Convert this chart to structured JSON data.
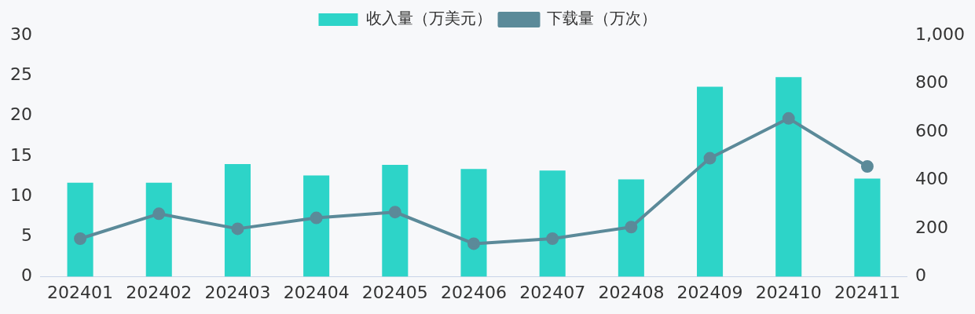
{
  "chart_data": {
    "type": "bar",
    "categories": [
      "202401",
      "202402",
      "202403",
      "202404",
      "202405",
      "202406",
      "202407",
      "202408",
      "202409",
      "202410",
      "202411"
    ],
    "series": [
      {
        "name": "收入量（万美元）",
        "color": "#2dd4c8",
        "values": [
          11.7,
          11.7,
          14.0,
          12.6,
          13.9,
          13.4,
          13.2,
          12.1,
          23.6,
          24.8,
          12.2
        ]
      },
      {
        "name": "下载量（万次）",
        "type": "line",
        "axis": "y2",
        "color": "#5b8a99",
        "values": [
          158,
          261,
          199,
          244,
          268,
          137,
          158,
          206,
          491,
          656,
          457
        ]
      }
    ],
    "ylim": [
      0,
      30
    ],
    "yticks": [
      0,
      5,
      10,
      15,
      20,
      25,
      30
    ],
    "y2lim": [
      0,
      1000
    ],
    "y2ticks": [
      0,
      200,
      400,
      600,
      800,
      {
        "value": 1000,
        "label": "1,000"
      }
    ],
    "grid": false,
    "legend": "top",
    "marker": "circle",
    "line_style": "solid"
  }
}
